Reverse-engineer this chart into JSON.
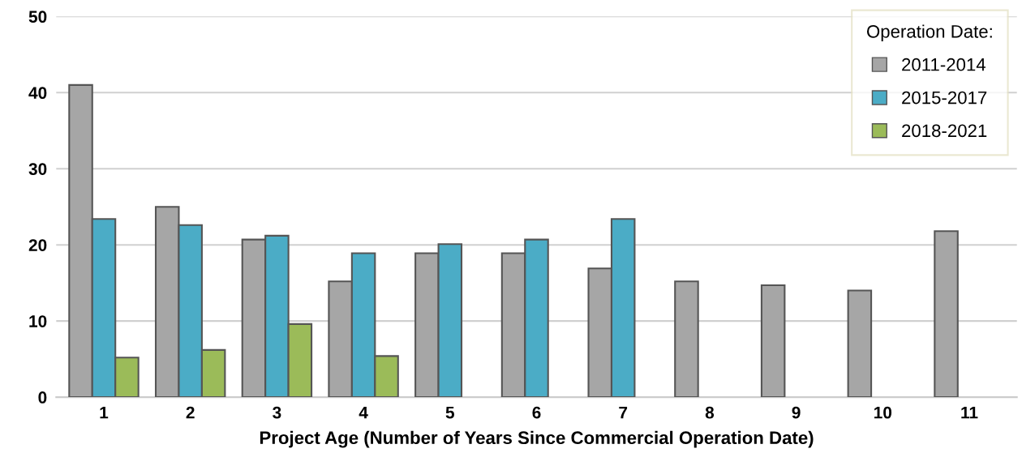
{
  "chart_data": {
    "type": "bar",
    "xlabel": "Project Age (Number of Years Since Commercial Operation Date)",
    "categories": [
      "1",
      "2",
      "3",
      "4",
      "5",
      "6",
      "7",
      "8",
      "9",
      "10",
      "11"
    ],
    "series": [
      {
        "name": "2011-2014",
        "color": "#a6a6a6",
        "values": [
          41.0,
          25.0,
          20.7,
          15.2,
          18.9,
          18.9,
          16.9,
          15.2,
          14.7,
          14.0,
          21.8
        ]
      },
      {
        "name": "2015-2017",
        "color": "#4bacc6",
        "values": [
          23.4,
          22.6,
          21.2,
          18.9,
          20.1,
          20.7,
          23.4,
          null,
          null,
          null,
          null
        ]
      },
      {
        "name": "2018-2021",
        "color": "#9bbb59",
        "values": [
          5.2,
          6.2,
          9.6,
          5.4,
          null,
          null,
          null,
          null,
          null,
          null,
          null
        ]
      }
    ],
    "legend_title": "Operation Date:",
    "legend": "top right",
    "ylim": [
      0,
      50
    ],
    "yticks": [
      0,
      10,
      20,
      30,
      40,
      50
    ],
    "grid": "y"
  }
}
